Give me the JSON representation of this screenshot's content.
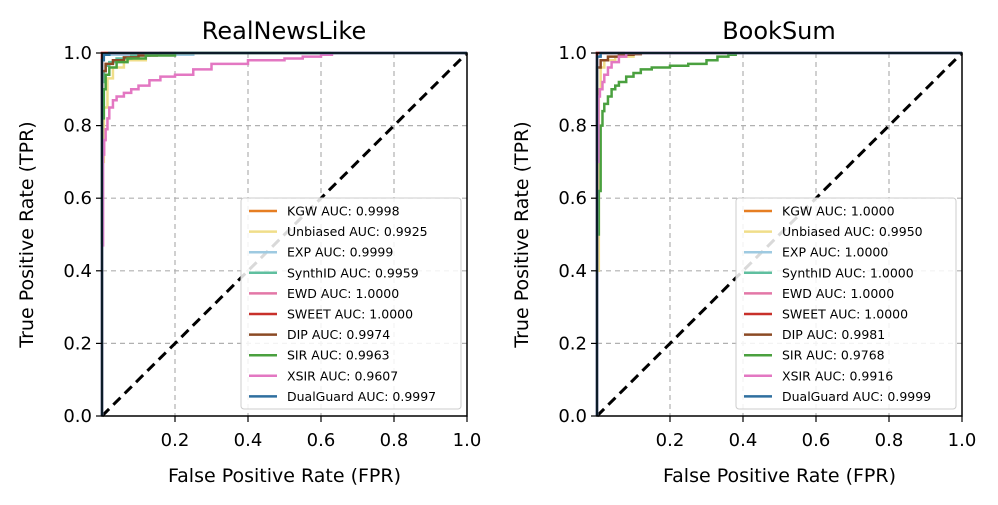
{
  "chart_data": [
    {
      "type": "line",
      "title": "RealNewsLike",
      "xlabel": "False Positive Rate (FPR)",
      "ylabel": "True Positive Rate (TPR)",
      "xlim": [
        0,
        1
      ],
      "ylim": [
        0,
        1
      ],
      "xticks": [
        "0.2",
        "0.4",
        "0.6",
        "0.8",
        "1.0"
      ],
      "yticks": [
        "0.0",
        "0.2",
        "0.4",
        "0.6",
        "0.8",
        "1.0"
      ],
      "grid": true,
      "legend_position": "lower-right",
      "diagonal": {
        "x": [
          0,
          1
        ],
        "y": [
          0,
          1
        ],
        "style": "dashed",
        "color": "#000000"
      },
      "series": [
        {
          "name": "KGW AUC: 0.9998",
          "color": "#e67e22",
          "x": [
            0,
            0,
            0.003,
            0.003,
            0.01,
            0.01,
            1
          ],
          "y": [
            0,
            0.985,
            0.985,
            0.995,
            0.995,
            1,
            1
          ]
        },
        {
          "name": "Unbiased AUC: 0.9925",
          "color": "#f0de8a",
          "x": [
            0,
            0,
            0.005,
            0.005,
            0.015,
            0.015,
            0.03,
            0.03,
            0.06,
            0.06,
            0.12,
            0.12,
            1
          ],
          "y": [
            0,
            0.7,
            0.7,
            0.85,
            0.85,
            0.93,
            0.93,
            0.96,
            0.96,
            0.98,
            0.98,
            1,
            1
          ]
        },
        {
          "name": "EXP AUC: 0.9999",
          "color": "#9ecae1",
          "x": [
            0,
            0,
            0.005,
            0.005,
            0.25,
            0.25,
            1
          ],
          "y": [
            0,
            0.99,
            0.99,
            0.995,
            0.995,
            1,
            1
          ]
        },
        {
          "name": "SynthID AUC: 0.9959",
          "color": "#5fbf9f",
          "x": [
            0,
            0,
            0.005,
            0.005,
            0.01,
            0.01,
            0.02,
            0.02,
            0.04,
            0.04,
            0.08,
            0.08,
            0.13,
            0.13,
            1
          ],
          "y": [
            0,
            0.92,
            0.92,
            0.95,
            0.95,
            0.965,
            0.965,
            0.975,
            0.975,
            0.985,
            0.985,
            0.993,
            0.993,
            1,
            1
          ]
        },
        {
          "name": "EWD AUC: 1.0000",
          "color": "#e377a7",
          "x": [
            0,
            0,
            1
          ],
          "y": [
            0,
            1,
            1
          ]
        },
        {
          "name": "SWEET AUC: 1.0000",
          "color": "#c8302a",
          "x": [
            0,
            0,
            1
          ],
          "y": [
            0,
            1,
            1
          ]
        },
        {
          "name": "DIP AUC: 0.9974",
          "color": "#8b4a24",
          "x": [
            0,
            0,
            0.01,
            0.01,
            0.03,
            0.03,
            0.06,
            0.06,
            0.1,
            0.1,
            0.15,
            0.15,
            0.16,
            0.16,
            1
          ],
          "y": [
            0,
            0.95,
            0.95,
            0.97,
            0.97,
            0.98,
            0.98,
            0.988,
            0.988,
            0.993,
            0.993,
            0.996,
            0.996,
            1,
            1
          ]
        },
        {
          "name": "SIR AUC: 0.9963",
          "color": "#4aa03f",
          "x": [
            0,
            0,
            0.005,
            0.005,
            0.01,
            0.01,
            0.02,
            0.02,
            0.04,
            0.04,
            0.07,
            0.07,
            0.12,
            0.12,
            0.2,
            0.2,
            1
          ],
          "y": [
            0,
            0.82,
            0.82,
            0.9,
            0.9,
            0.94,
            0.94,
            0.96,
            0.96,
            0.975,
            0.975,
            0.985,
            0.985,
            0.993,
            0.993,
            1,
            1
          ]
        },
        {
          "name": "XSIR AUC: 0.9607",
          "color": "#e377c2",
          "x": [
            0,
            0,
            0.003,
            0.003,
            0.006,
            0.006,
            0.01,
            0.01,
            0.015,
            0.015,
            0.02,
            0.02,
            0.03,
            0.03,
            0.04,
            0.04,
            0.06,
            0.06,
            0.08,
            0.08,
            0.1,
            0.1,
            0.13,
            0.13,
            0.16,
            0.16,
            0.2,
            0.2,
            0.25,
            0.25,
            0.3,
            0.3,
            0.4,
            0.4,
            0.5,
            0.5,
            0.55,
            0.55,
            0.6,
            0.6,
            0.63,
            0.63,
            1
          ],
          "y": [
            0,
            0.47,
            0.47,
            0.72,
            0.72,
            0.76,
            0.76,
            0.79,
            0.79,
            0.82,
            0.82,
            0.85,
            0.85,
            0.87,
            0.87,
            0.88,
            0.88,
            0.89,
            0.89,
            0.9,
            0.9,
            0.91,
            0.91,
            0.925,
            0.925,
            0.935,
            0.935,
            0.94,
            0.94,
            0.955,
            0.955,
            0.97,
            0.97,
            0.98,
            0.98,
            0.985,
            0.985,
            0.99,
            0.99,
            0.995,
            0.995,
            1,
            1
          ]
        },
        {
          "name": "DualGuard AUC: 0.9997",
          "color": "#2f6f9f",
          "x": [
            0,
            0,
            0.005,
            0.005,
            0.02,
            0.02,
            1
          ],
          "y": [
            0,
            0.98,
            0.98,
            0.995,
            0.995,
            1,
            1
          ]
        }
      ]
    },
    {
      "type": "line",
      "title": "BookSum",
      "xlabel": "False Positive Rate (FPR)",
      "ylabel": "True Positive Rate (TPR)",
      "xlim": [
        0,
        1
      ],
      "ylim": [
        0,
        1
      ],
      "xticks": [
        "0.2",
        "0.4",
        "0.6",
        "0.8",
        "1.0"
      ],
      "yticks": [
        "0.0",
        "0.2",
        "0.4",
        "0.6",
        "0.8",
        "1.0"
      ],
      "grid": true,
      "legend_position": "lower-right",
      "diagonal": {
        "x": [
          0,
          1
        ],
        "y": [
          0,
          1
        ],
        "style": "dashed",
        "color": "#000000"
      },
      "series": [
        {
          "name": "KGW AUC: 1.0000",
          "color": "#e67e22",
          "x": [
            0,
            0,
            1
          ],
          "y": [
            0,
            1,
            1
          ]
        },
        {
          "name": "Unbiased AUC: 0.9950",
          "color": "#f0de8a",
          "x": [
            0,
            0,
            0.005,
            0.005,
            0.01,
            0.01,
            0.02,
            0.02,
            0.05,
            0.05,
            0.1,
            0.1,
            1
          ],
          "y": [
            0,
            0.4,
            0.4,
            0.9,
            0.9,
            0.96,
            0.96,
            0.98,
            0.98,
            0.99,
            0.99,
            1,
            1
          ]
        },
        {
          "name": "EXP AUC: 1.0000",
          "color": "#9ecae1",
          "x": [
            0,
            0,
            1
          ],
          "y": [
            0,
            1,
            1
          ]
        },
        {
          "name": "SynthID AUC: 1.0000",
          "color": "#5fbf9f",
          "x": [
            0,
            0,
            1
          ],
          "y": [
            0,
            1,
            1
          ]
        },
        {
          "name": "EWD AUC: 1.0000",
          "color": "#e377a7",
          "x": [
            0,
            0,
            1
          ],
          "y": [
            0,
            1,
            1
          ]
        },
        {
          "name": "SWEET AUC: 1.0000",
          "color": "#c8302a",
          "x": [
            0,
            0,
            1
          ],
          "y": [
            0,
            1,
            1
          ]
        },
        {
          "name": "DIP AUC: 0.9981",
          "color": "#8b4a24",
          "x": [
            0,
            0,
            0.01,
            0.01,
            0.03,
            0.03,
            0.06,
            0.06,
            0.1,
            0.1,
            0.12,
            0.12,
            1
          ],
          "y": [
            0,
            0.96,
            0.96,
            0.98,
            0.98,
            0.99,
            0.99,
            0.995,
            0.995,
            0.997,
            0.997,
            1,
            1
          ]
        },
        {
          "name": "SIR AUC: 0.9768",
          "color": "#4aa03f",
          "x": [
            0,
            0,
            0.005,
            0.005,
            0.01,
            0.01,
            0.015,
            0.015,
            0.02,
            0.02,
            0.03,
            0.03,
            0.04,
            0.04,
            0.05,
            0.05,
            0.06,
            0.06,
            0.08,
            0.08,
            0.1,
            0.1,
            0.12,
            0.12,
            0.15,
            0.15,
            0.2,
            0.2,
            0.25,
            0.25,
            0.3,
            0.3,
            0.33,
            0.33,
            0.36,
            0.36,
            0.38,
            0.38,
            1
          ],
          "y": [
            0,
            0.5,
            0.5,
            0.62,
            0.62,
            0.8,
            0.8,
            0.84,
            0.84,
            0.86,
            0.86,
            0.88,
            0.88,
            0.9,
            0.9,
            0.91,
            0.91,
            0.92,
            0.92,
            0.935,
            0.935,
            0.945,
            0.945,
            0.955,
            0.955,
            0.96,
            0.96,
            0.965,
            0.965,
            0.97,
            0.97,
            0.98,
            0.98,
            0.99,
            0.99,
            0.995,
            0.995,
            1,
            1
          ]
        },
        {
          "name": "XSIR AUC: 0.9916",
          "color": "#e377c2",
          "x": [
            0,
            0,
            0.004,
            0.004,
            0.008,
            0.008,
            0.015,
            0.015,
            0.02,
            0.02,
            0.03,
            0.03,
            0.04,
            0.04,
            0.06,
            0.06,
            0.08,
            0.08,
            1
          ],
          "y": [
            0,
            0.7,
            0.7,
            0.88,
            0.88,
            0.9,
            0.9,
            0.92,
            0.92,
            0.94,
            0.94,
            0.96,
            0.96,
            0.975,
            0.975,
            0.99,
            0.99,
            1,
            1
          ]
        },
        {
          "name": "DualGuard AUC: 0.9999",
          "color": "#2f6f9f",
          "x": [
            0,
            0,
            0.01,
            0.01,
            1
          ],
          "y": [
            0,
            0.99,
            0.99,
            1,
            1
          ]
        }
      ]
    }
  ]
}
